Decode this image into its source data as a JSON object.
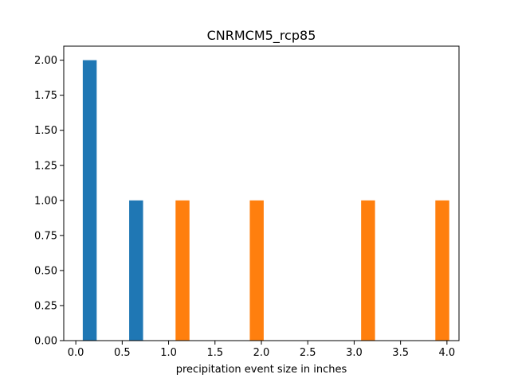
{
  "chart_data": {
    "type": "bar",
    "title": "CNRMCM5_rcp85",
    "xlabel": "precipitation event size in inches",
    "ylabel": "",
    "xlim": [
      -0.13,
      4.13
    ],
    "ylim": [
      0,
      2.1
    ],
    "grid": false,
    "bar_width": 0.15,
    "xticks": [
      "0.0",
      "0.5",
      "1.0",
      "1.5",
      "2.0",
      "2.5",
      "3.0",
      "3.5",
      "4.0"
    ],
    "yticks": [
      "0.00",
      "0.25",
      "0.50",
      "0.75",
      "1.00",
      "1.25",
      "1.50",
      "1.75",
      "2.00"
    ],
    "series": [
      {
        "color": "#1f77b4",
        "bars": [
          {
            "x": 0.15,
            "value": 2
          },
          {
            "x": 0.65,
            "value": 1
          }
        ]
      },
      {
        "color": "#ff7f0e",
        "bars": [
          {
            "x": 1.15,
            "value": 1
          },
          {
            "x": 1.95,
            "value": 1
          },
          {
            "x": 3.15,
            "value": 1
          },
          {
            "x": 3.95,
            "value": 1
          }
        ]
      }
    ]
  }
}
